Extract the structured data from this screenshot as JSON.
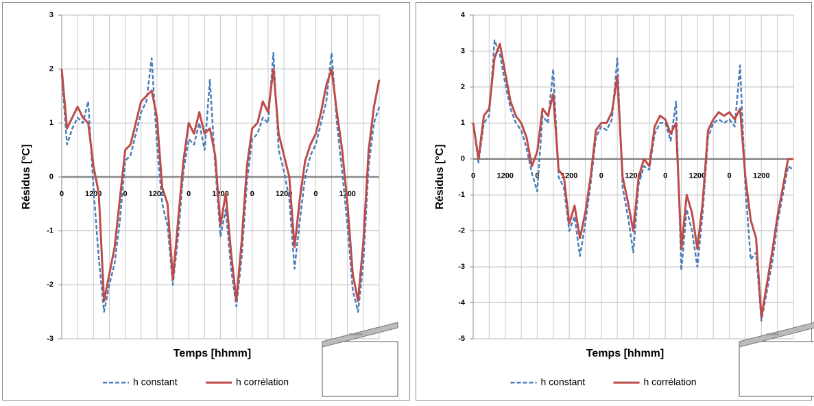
{
  "chart_data": [
    {
      "type": "line",
      "xlabel": "Temps [hhmm]",
      "ylabel": "Résidus [°C]",
      "grid": true,
      "legend": "bottom",
      "categories": [
        "0",
        null,
        null,
        null,
        null,
        null,
        "1200",
        null,
        null,
        null,
        null,
        null,
        "0",
        null,
        null,
        null,
        null,
        null,
        "1200",
        null,
        null,
        null,
        null,
        null,
        "0",
        null,
        null,
        null,
        null,
        null,
        "1200",
        null,
        null,
        null,
        null,
        null,
        "0",
        null,
        null,
        null,
        null,
        null,
        "1200",
        null,
        null,
        null,
        null,
        null,
        "0",
        null,
        null,
        null,
        null,
        null,
        "1200",
        null,
        null,
        null,
        null,
        null,
        null
      ],
      "ylim": [
        -3,
        3
      ],
      "yticks": [
        -3,
        -2,
        -1,
        0,
        1,
        2,
        3
      ],
      "series": [
        {
          "name": "h constant",
          "color": "#4a7ebb",
          "dash": true,
          "values": [
            1.9,
            0.6,
            0.9,
            1.1,
            1.0,
            1.4,
            -0.2,
            -1.5,
            -2.5,
            -2.0,
            -1.6,
            -0.8,
            0.3,
            0.4,
            0.8,
            1.2,
            1.4,
            2.2,
            0.6,
            -0.5,
            -0.9,
            -2.0,
            -1.1,
            0.1,
            0.7,
            0.6,
            1.0,
            0.5,
            1.8,
            0.2,
            -1.1,
            -0.6,
            -1.7,
            -2.4,
            -1.5,
            -0.1,
            0.7,
            0.8,
            1.1,
            1.0,
            2.3,
            0.5,
            0.1,
            -0.4,
            -1.7,
            -0.8,
            0.0,
            0.4,
            0.6,
            1.0,
            1.4,
            2.3,
            1.0,
            0.1,
            -0.9,
            -2.1,
            -2.5,
            -1.6,
            0.2,
            1.0,
            1.3
          ]
        },
        {
          "name": "h corrélation",
          "color": "#be4b48",
          "dash": false,
          "values": [
            2.0,
            0.9,
            1.1,
            1.3,
            1.1,
            1.0,
            0.2,
            -0.3,
            -2.3,
            -1.8,
            -1.3,
            -0.4,
            0.5,
            0.6,
            1.0,
            1.4,
            1.5,
            1.6,
            1.1,
            -0.2,
            -0.5,
            -1.9,
            -0.8,
            0.3,
            1.0,
            0.8,
            1.2,
            0.8,
            0.9,
            0.4,
            -0.9,
            -0.3,
            -1.4,
            -2.3,
            -1.2,
            0.2,
            0.9,
            1.0,
            1.4,
            1.2,
            2.0,
            0.8,
            0.4,
            0.0,
            -1.3,
            -0.4,
            0.3,
            0.6,
            0.8,
            1.2,
            1.7,
            2.0,
            1.2,
            0.5,
            -0.5,
            -1.8,
            -2.3,
            -1.2,
            0.5,
            1.3,
            1.8
          ]
        }
      ]
    },
    {
      "type": "line",
      "xlabel": "Temps [hhmm]",
      "ylabel": "Résidus [°C]",
      "grid": true,
      "legend": "bottom",
      "categories": [
        "0",
        null,
        null,
        null,
        null,
        null,
        "1200",
        null,
        null,
        null,
        null,
        null,
        "0",
        null,
        null,
        null,
        null,
        null,
        "1200",
        null,
        null,
        null,
        null,
        null,
        "0",
        null,
        null,
        null,
        null,
        null,
        "1200",
        null,
        null,
        null,
        null,
        null,
        "0",
        null,
        null,
        null,
        null,
        null,
        "1200",
        null,
        null,
        null,
        null,
        null,
        "0",
        null,
        null,
        null,
        null,
        null,
        "1200",
        null,
        null,
        null,
        null,
        null,
        null
      ],
      "ylim": [
        -5,
        4
      ],
      "yticks": [
        -5,
        -4,
        -3,
        -2,
        -1,
        0,
        1,
        2,
        3,
        4
      ],
      "series": [
        {
          "name": "h constant",
          "color": "#4a7ebb",
          "dash": true,
          "values": [
            1.0,
            -0.1,
            1.0,
            1.2,
            3.3,
            2.9,
            2.1,
            1.4,
            1.0,
            0.8,
            0.3,
            -0.4,
            -0.9,
            1.2,
            1.0,
            2.5,
            -0.5,
            -0.8,
            -2.0,
            -1.6,
            -2.7,
            -1.8,
            -0.7,
            0.6,
            0.9,
            0.8,
            1.1,
            2.8,
            -0.8,
            -1.6,
            -2.6,
            -0.7,
            -0.2,
            -0.3,
            0.7,
            1.0,
            1.0,
            0.5,
            1.6,
            -3.1,
            -1.4,
            -2.0,
            -3.0,
            -1.5,
            0.6,
            1.0,
            1.1,
            1.0,
            1.1,
            0.9,
            2.6,
            -0.8,
            -2.8,
            -2.6,
            -4.5,
            -3.7,
            -2.9,
            -1.8,
            -1.0,
            -0.2,
            -0.3
          ]
        },
        {
          "name": "h corrélation",
          "color": "#be4b48",
          "dash": false,
          "values": [
            1.0,
            0.0,
            1.2,
            1.4,
            2.8,
            3.2,
            2.4,
            1.6,
            1.2,
            1.0,
            0.6,
            -0.2,
            0.2,
            1.4,
            1.2,
            1.8,
            -0.3,
            -0.5,
            -1.8,
            -1.3,
            -2.2,
            -1.5,
            -0.5,
            0.8,
            1.0,
            1.0,
            1.3,
            2.3,
            -0.5,
            -1.2,
            -2.0,
            -0.5,
            0.0,
            -0.2,
            0.9,
            1.2,
            1.1,
            0.7,
            1.0,
            -2.5,
            -1.0,
            -1.5,
            -2.5,
            -1.2,
            0.8,
            1.1,
            1.3,
            1.2,
            1.3,
            1.1,
            1.4,
            -0.5,
            -1.7,
            -2.2,
            -4.4,
            -3.5,
            -2.6,
            -1.6,
            -0.8,
            0.0,
            0.0
          ]
        }
      ]
    }
  ]
}
